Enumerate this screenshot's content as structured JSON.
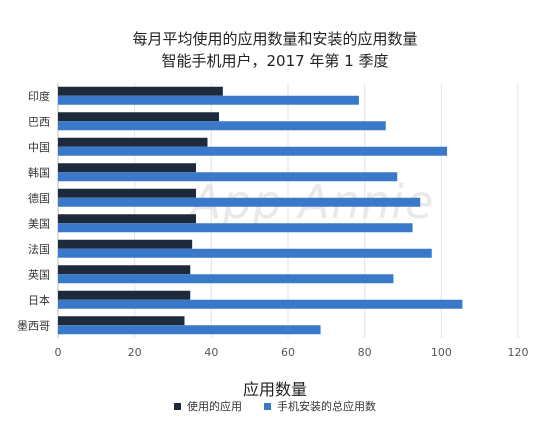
{
  "colors": {
    "used": "#1c2a3c",
    "installed": "#3a78c9",
    "grid": "#e3e3e3",
    "axis": "#bdbdbd"
  },
  "chart_data": {
    "type": "bar",
    "orientation": "horizontal",
    "title": "每月平均使用的应用数量和安装的应用数量",
    "subtitle": "智能手机用户，2017 年第 1 季度",
    "xlabel": "应用数量",
    "ylabel": "",
    "xlim": [
      0,
      120
    ],
    "xticks": [
      0,
      20,
      40,
      60,
      80,
      100,
      120
    ],
    "grid": true,
    "legend_position": "bottom",
    "categories": [
      "印度",
      "巴西",
      "中国",
      "韩国",
      "德国",
      "美国",
      "法国",
      "英国",
      "日本",
      "墨西哥"
    ],
    "series": [
      {
        "name": "使用的应用",
        "values": [
          43,
          42,
          39,
          36,
          36,
          36,
          35,
          34.5,
          34.5,
          33
        ]
      },
      {
        "name": "手机安装的总应用数",
        "values": [
          78.5,
          85.5,
          101.5,
          88.5,
          94.5,
          92.5,
          97.5,
          87.5,
          105.5,
          68.5
        ]
      }
    ],
    "watermark": "App Annie"
  }
}
